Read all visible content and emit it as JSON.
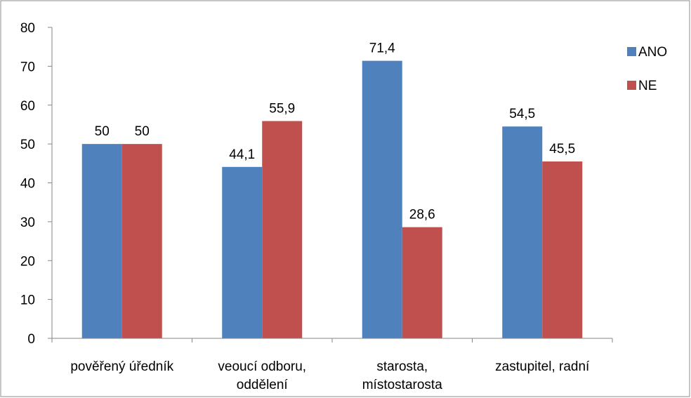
{
  "chart_data": {
    "type": "bar",
    "title": "",
    "xlabel": "",
    "ylabel": "",
    "ylim": [
      0,
      80
    ],
    "yticks": [
      "0",
      "10",
      "20",
      "30",
      "40",
      "50",
      "60",
      "70",
      "80"
    ],
    "ytick_values": [
      0,
      10,
      20,
      30,
      40,
      50,
      60,
      70,
      80
    ],
    "categories": [
      [
        "pověřený úředník"
      ],
      [
        "veoucí odboru,",
        "oddělení"
      ],
      [
        "starosta,",
        "místostarosta"
      ],
      [
        "zastupitel, radní"
      ]
    ],
    "series": [
      {
        "name": "ANO",
        "color": "#4F81BD",
        "values": [
          50,
          44.1,
          71.4,
          54.5
        ],
        "labels": [
          "50",
          "44,1",
          "71,4",
          "54,5"
        ]
      },
      {
        "name": "NE",
        "color": "#C0504D",
        "values": [
          50,
          55.9,
          28.6,
          45.5
        ],
        "labels": [
          "50",
          "55,9",
          "28,6",
          "45,5"
        ]
      }
    ],
    "grid": false,
    "legend_position": "right"
  }
}
